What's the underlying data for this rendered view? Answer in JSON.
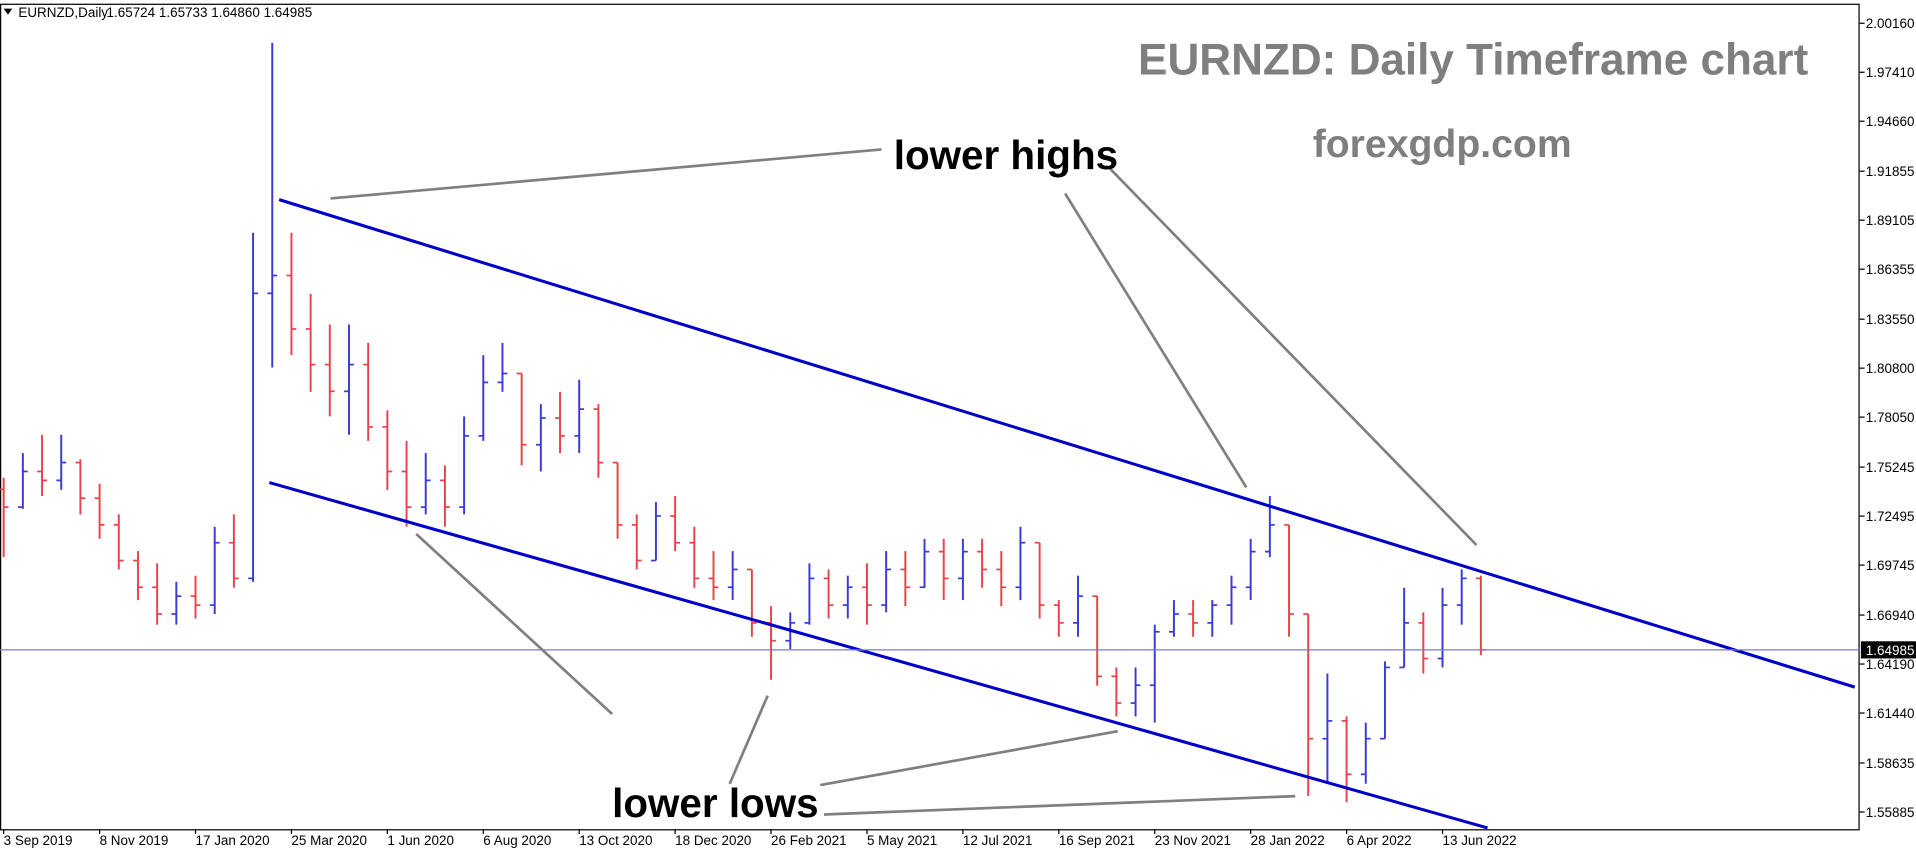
{
  "chart_data": {
    "type": "ohlc",
    "symbol_label": "EURNZD,Daily",
    "ohlc_label": "1.65724 1.65733 1.64860 1.64985",
    "title": "EURNZD: Daily Timeframe chart",
    "subtitle": "forexgdp.com",
    "annotations": [
      "lower highs",
      "lower lows"
    ],
    "categories": [
      "3 Sep 2019",
      null,
      null,
      null,
      null,
      "8 Nov 2019",
      null,
      null,
      null,
      null,
      "17 Jan 2020",
      null,
      null,
      null,
      null,
      "25 Mar 2020",
      null,
      null,
      null,
      null,
      "1 Jun 2020",
      null,
      null,
      null,
      null,
      "6 Aug 2020",
      null,
      null,
      null,
      null,
      "13 Oct 2020",
      null,
      null,
      null,
      null,
      "18 Dec 2020",
      null,
      null,
      null,
      null,
      "26 Feb 2021",
      null,
      null,
      null,
      null,
      "5 May 2021",
      null,
      null,
      null,
      null,
      "12 Jul 2021",
      null,
      null,
      null,
      null,
      "16 Sep 2021",
      null,
      null,
      null,
      null,
      "23 Nov 2021",
      null,
      null,
      null,
      null,
      "28 Jan 2022",
      null,
      null,
      null,
      null,
      "6 Apr 2022",
      null,
      null,
      null,
      null,
      "13 Jun 2022",
      null,
      null
    ],
    "open": [
      1.74,
      1.73,
      1.75,
      1.745,
      1.755,
      1.735,
      1.72,
      1.7,
      1.685,
      1.67,
      1.68,
      1.675,
      1.71,
      1.69,
      1.85,
      1.86,
      1.83,
      1.81,
      1.795,
      1.81,
      1.775,
      1.75,
      1.73,
      1.745,
      1.73,
      1.77,
      1.8,
      1.805,
      1.765,
      1.78,
      1.77,
      1.785,
      1.755,
      1.72,
      1.7,
      1.725,
      1.71,
      1.69,
      1.685,
      1.695,
      1.665,
      1.655,
      1.665,
      1.69,
      1.675,
      1.685,
      1.675,
      1.695,
      1.685,
      1.705,
      1.69,
      1.705,
      1.695,
      1.685,
      1.71,
      1.675,
      1.665,
      1.68,
      1.635,
      1.62,
      1.63,
      1.66,
      1.67,
      1.665,
      1.675,
      1.685,
      1.705,
      1.72,
      1.67,
      1.6,
      1.61,
      1.58,
      1.6,
      1.64,
      1.665,
      1.645,
      1.675,
      1.69
    ],
    "high": [
      1.7465,
      1.7603,
      1.7706,
      1.7706,
      1.7568,
      1.7431,
      1.7259,
      1.7053,
      1.6984,
      1.6881,
      1.6915,
      1.719,
      1.7259,
      1.884,
      1.9906,
      1.884,
      1.8497,
      1.8325,
      1.8325,
      1.8222,
      1.7843,
      1.7672,
      1.7603,
      1.7534,
      1.7809,
      1.8153,
      1.8222,
      1.805,
      1.7878,
      1.7947,
      1.8015,
      1.7878,
      1.755,
      1.7259,
      1.7328,
      1.7362,
      1.719,
      1.7053,
      1.7053,
      1.695,
      1.6744,
      1.6709,
      1.6984,
      1.695,
      1.6915,
      1.6984,
      1.7053,
      1.7053,
      1.7122,
      1.7122,
      1.7122,
      1.7122,
      1.7053,
      1.719,
      1.71,
      1.6778,
      1.6915,
      1.68,
      1.64,
      1.64,
      1.664,
      1.6778,
      1.6778,
      1.6778,
      1.6915,
      1.7122,
      1.7362,
      1.72,
      1.67,
      1.6366,
      1.6125,
      1.609,
      1.6434,
      1.6847,
      1.6709,
      1.6847,
      1.695,
      1.6915
    ],
    "low": [
      1.7019,
      1.729,
      1.7362,
      1.7397,
      1.7259,
      1.7122,
      1.695,
      1.6778,
      1.664,
      1.664,
      1.6675,
      1.67,
      1.6847,
      1.688,
      1.8084,
      1.8153,
      1.7947,
      1.7809,
      1.7706,
      1.7672,
      1.7397,
      1.719,
      1.7259,
      1.719,
      1.7259,
      1.7672,
      1.7947,
      1.7534,
      1.75,
      1.7603,
      1.7603,
      1.7465,
      1.7122,
      1.695,
      1.7,
      1.7053,
      1.6847,
      1.6778,
      1.6778,
      1.6572,
      1.6331,
      1.6503,
      1.664,
      1.6675,
      1.6675,
      1.664,
      1.6709,
      1.6744,
      1.6847,
      1.6778,
      1.6778,
      1.6847,
      1.6744,
      1.6778,
      1.6675,
      1.6572,
      1.6572,
      1.6297,
      1.6125,
      1.6125,
      1.609,
      1.6572,
      1.6572,
      1.6572,
      1.664,
      1.6778,
      1.7019,
      1.6572,
      1.5678,
      1.5747,
      1.5644,
      1.5747,
      1.6,
      1.64,
      1.6366,
      1.64,
      1.664,
      1.6469
    ],
    "close": [
      1.73,
      1.75,
      1.745,
      1.755,
      1.735,
      1.72,
      1.7,
      1.685,
      1.67,
      1.68,
      1.675,
      1.71,
      1.69,
      1.85,
      1.86,
      1.83,
      1.81,
      1.795,
      1.81,
      1.775,
      1.75,
      1.73,
      1.745,
      1.73,
      1.77,
      1.8,
      1.805,
      1.765,
      1.78,
      1.77,
      1.785,
      1.755,
      1.72,
      1.7,
      1.725,
      1.71,
      1.69,
      1.685,
      1.695,
      1.665,
      1.655,
      1.665,
      1.69,
      1.675,
      1.685,
      1.675,
      1.695,
      1.685,
      1.705,
      1.69,
      1.705,
      1.695,
      1.685,
      1.71,
      1.675,
      1.665,
      1.68,
      1.635,
      1.62,
      1.63,
      1.66,
      1.67,
      1.665,
      1.675,
      1.685,
      1.705,
      1.72,
      1.67,
      1.6,
      1.61,
      1.58,
      1.6,
      1.64,
      1.665,
      1.645,
      1.675,
      1.69,
      1.6499
    ],
    "up_color": "#3a3ad8",
    "down_color": "#e8434b",
    "current_price": 1.64985,
    "current_price_color": "#7b7bc8",
    "ylim": [
      1.5492,
      2.0126
    ],
    "yticks": [
      {
        "value": 2.0016,
        "label": "2.00160"
      },
      {
        "value": 1.9741,
        "label": "1.97410"
      },
      {
        "value": 1.9466,
        "label": "1.94660"
      },
      1.91855,
      1.89105,
      1.86355,
      {
        "value": 1.8355,
        "label": "1.83550"
      },
      {
        "value": 1.808,
        "label": "1.80800"
      },
      {
        "value": 1.7805,
        "label": "1.78050"
      },
      1.75245,
      1.72495,
      1.69745,
      {
        "value": 1.6694,
        "label": "1.66940"
      },
      {
        "value": 1.6419,
        "label": "1.64190"
      },
      {
        "value": 1.6144,
        "label": "1.61440"
      },
      1.58635,
      1.55885
    ],
    "grid": false
  }
}
